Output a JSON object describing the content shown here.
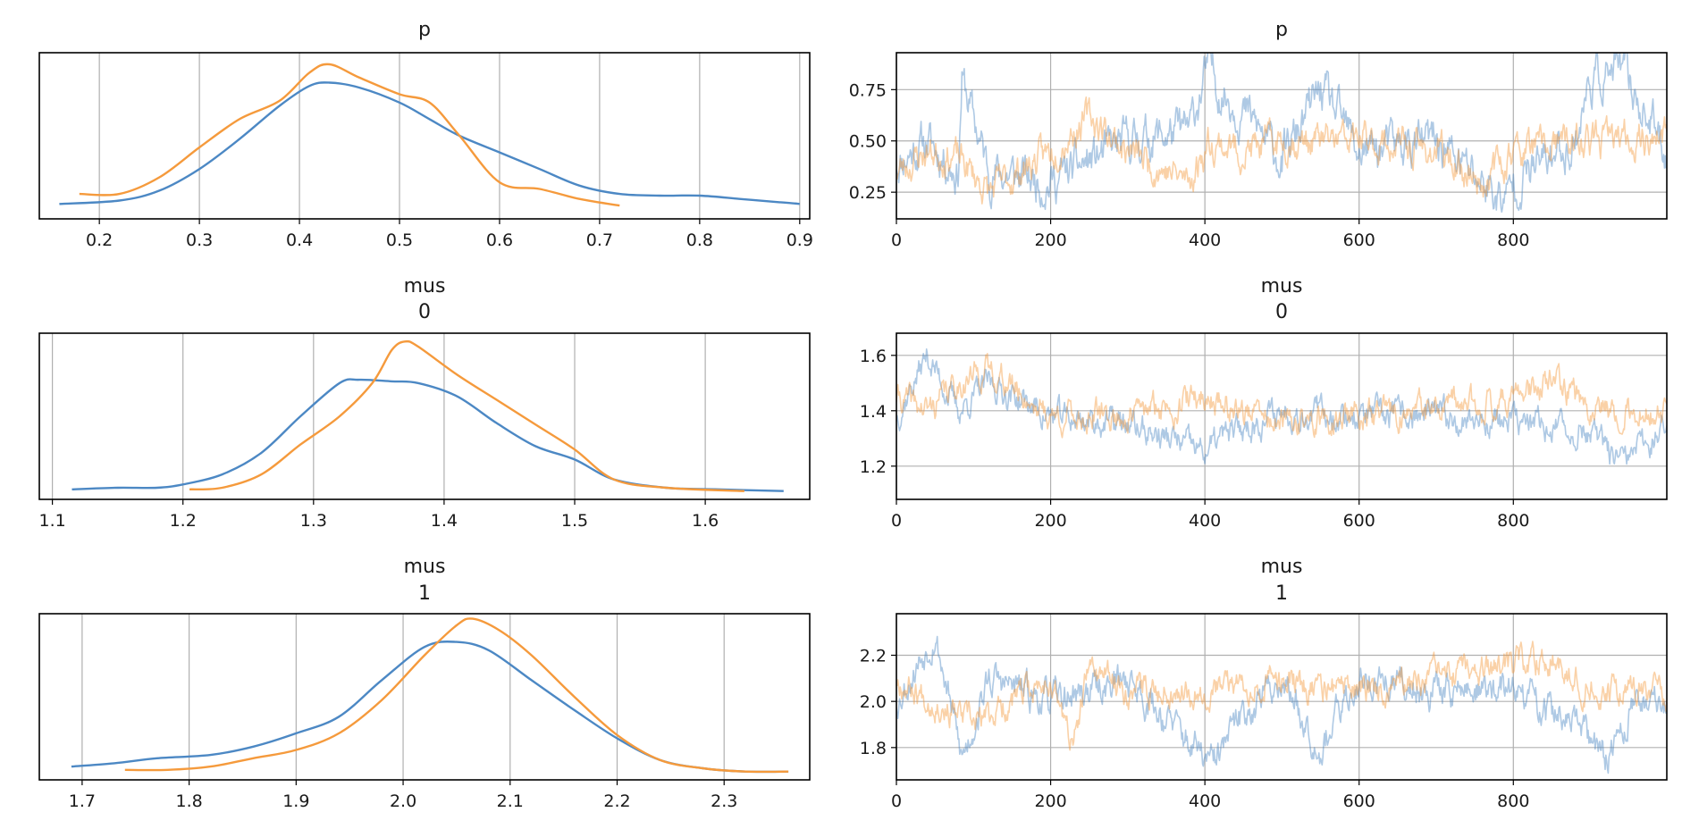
{
  "colors": {
    "chain_0": "#4c88c4",
    "chain_1": "#f59a3c"
  },
  "chart_data": [
    {
      "type": "line",
      "kind": "density",
      "title": [
        "p"
      ],
      "xlim": [
        0.14,
        0.91
      ],
      "xticks": [
        0.2,
        0.3,
        0.4,
        0.5,
        0.6,
        0.7,
        0.8,
        0.9
      ],
      "xtick_labels": [
        "0.2",
        "0.3",
        "0.4",
        "0.5",
        "0.6",
        "0.7",
        "0.8",
        "0.9"
      ],
      "ylim": [
        0,
        1
      ],
      "grid": "x",
      "series": [
        {
          "x": [
            0.16,
            0.22,
            0.26,
            0.3,
            0.34,
            0.38,
            0.41,
            0.43,
            0.46,
            0.5,
            0.53,
            0.56,
            0.6,
            0.64,
            0.68,
            0.72,
            0.76,
            0.8,
            0.84,
            0.88,
            0.9
          ],
          "y": [
            0.09,
            0.11,
            0.17,
            0.3,
            0.48,
            0.68,
            0.8,
            0.82,
            0.79,
            0.7,
            0.6,
            0.5,
            0.4,
            0.3,
            0.2,
            0.15,
            0.14,
            0.14,
            0.12,
            0.1,
            0.09
          ]
        },
        {
          "x": [
            0.18,
            0.22,
            0.26,
            0.3,
            0.34,
            0.38,
            0.41,
            0.43,
            0.46,
            0.5,
            0.53,
            0.56,
            0.6,
            0.64,
            0.68,
            0.72
          ],
          "y": [
            0.15,
            0.15,
            0.25,
            0.43,
            0.6,
            0.71,
            0.88,
            0.93,
            0.85,
            0.75,
            0.7,
            0.5,
            0.22,
            0.18,
            0.12,
            0.08
          ]
        }
      ]
    },
    {
      "type": "line",
      "kind": "trace",
      "title": [
        "p"
      ],
      "xlim": [
        0,
        999
      ],
      "xticks": [
        0,
        200,
        400,
        600,
        800
      ],
      "xtick_labels": [
        "0",
        "200",
        "400",
        "600",
        "800"
      ],
      "ylim": [
        0.12,
        0.93
      ],
      "yticks": [
        0.25,
        0.5,
        0.75
      ],
      "ytick_labels": [
        "0.25",
        "0.50",
        "0.75"
      ],
      "grid": "xy",
      "series": [
        {
          "x": [
            0,
            40,
            80,
            85,
            120,
            200,
            300,
            380,
            405,
            420,
            460,
            500,
            550,
            600,
            700,
            790,
            800,
            880,
            900,
            940,
            999
          ],
          "y": [
            0.4,
            0.5,
            0.35,
            0.8,
            0.35,
            0.3,
            0.5,
            0.55,
            0.88,
            0.75,
            0.6,
            0.4,
            0.75,
            0.45,
            0.5,
            0.2,
            0.3,
            0.5,
            0.8,
            0.85,
            0.45
          ],
          "mean": 0.46,
          "sd": 0.1,
          "seed": 11
        },
        {
          "x": [
            0,
            40,
            80,
            120,
            200,
            250,
            300,
            380,
            405,
            450,
            500,
            600,
            700,
            760,
            800,
            900,
            999
          ],
          "y": [
            0.35,
            0.45,
            0.42,
            0.25,
            0.45,
            0.62,
            0.45,
            0.3,
            0.5,
            0.45,
            0.5,
            0.5,
            0.45,
            0.3,
            0.45,
            0.5,
            0.52
          ],
          "mean": 0.44,
          "sd": 0.08,
          "seed": 23
        }
      ]
    },
    {
      "type": "line",
      "kind": "density",
      "title": [
        "mus",
        "0"
      ],
      "xlim": [
        1.09,
        1.68
      ],
      "xticks": [
        1.1,
        1.2,
        1.3,
        1.4,
        1.5,
        1.6
      ],
      "xtick_labels": [
        "1.1",
        "1.2",
        "1.3",
        "1.4",
        "1.5",
        "1.6"
      ],
      "ylim": [
        0,
        1
      ],
      "grid": "x",
      "series": [
        {
          "x": [
            1.115,
            1.15,
            1.18,
            1.2,
            1.23,
            1.26,
            1.29,
            1.32,
            1.335,
            1.36,
            1.38,
            1.41,
            1.44,
            1.47,
            1.5,
            1.53,
            1.57,
            1.61,
            1.66
          ],
          "y": [
            0.06,
            0.07,
            0.07,
            0.09,
            0.15,
            0.28,
            0.5,
            0.7,
            0.72,
            0.71,
            0.7,
            0.62,
            0.46,
            0.32,
            0.24,
            0.12,
            0.07,
            0.06,
            0.05
          ]
        },
        {
          "x": [
            1.205,
            1.23,
            1.26,
            1.29,
            1.32,
            1.345,
            1.36,
            1.37,
            1.38,
            1.41,
            1.44,
            1.47,
            1.5,
            1.53,
            1.57,
            1.63
          ],
          "y": [
            0.06,
            0.07,
            0.15,
            0.33,
            0.5,
            0.7,
            0.9,
            0.95,
            0.92,
            0.75,
            0.6,
            0.45,
            0.3,
            0.12,
            0.07,
            0.05
          ]
        }
      ]
    },
    {
      "type": "line",
      "kind": "trace",
      "title": [
        "mus",
        "0"
      ],
      "xlim": [
        0,
        999
      ],
      "xticks": [
        0,
        200,
        400,
        600,
        800
      ],
      "xtick_labels": [
        "0",
        "200",
        "400",
        "600",
        "800"
      ],
      "ylim": [
        1.08,
        1.68
      ],
      "yticks": [
        1.2,
        1.4,
        1.6
      ],
      "ytick_labels": [
        "1.2",
        "1.4",
        "1.6"
      ],
      "grid": "xy",
      "series": [
        {
          "x": [
            0,
            40,
            80,
            120,
            200,
            300,
            350,
            400,
            420,
            500,
            600,
            700,
            800,
            900,
            940,
            999
          ],
          "y": [
            1.38,
            1.6,
            1.4,
            1.5,
            1.38,
            1.35,
            1.3,
            1.25,
            1.3,
            1.4,
            1.38,
            1.38,
            1.36,
            1.32,
            1.2,
            1.35
          ],
          "mean": 1.38,
          "sd": 0.05,
          "seed": 37
        },
        {
          "x": [
            0,
            40,
            80,
            120,
            200,
            300,
            400,
            500,
            600,
            700,
            800,
            850,
            900,
            999
          ],
          "y": [
            1.45,
            1.4,
            1.5,
            1.55,
            1.38,
            1.38,
            1.45,
            1.35,
            1.38,
            1.4,
            1.45,
            1.5,
            1.42,
            1.38
          ],
          "mean": 1.4,
          "sd": 0.05,
          "seed": 41
        }
      ]
    },
    {
      "type": "line",
      "kind": "density",
      "title": [
        "mus",
        "1"
      ],
      "xlim": [
        1.66,
        2.38
      ],
      "xticks": [
        1.7,
        1.8,
        1.9,
        2.0,
        2.1,
        2.2,
        2.3
      ],
      "xtick_labels": [
        "1.7",
        "1.8",
        "1.9",
        "2.0",
        "2.1",
        "2.2",
        "2.3"
      ],
      "ylim": [
        0,
        1
      ],
      "grid": "x",
      "series": [
        {
          "x": [
            1.69,
            1.73,
            1.77,
            1.82,
            1.86,
            1.9,
            1.94,
            1.98,
            2.02,
            2.05,
            2.08,
            2.12,
            2.16,
            2.2,
            2.24,
            2.28,
            2.32,
            2.36
          ],
          "y": [
            0.08,
            0.1,
            0.13,
            0.15,
            0.2,
            0.28,
            0.38,
            0.6,
            0.8,
            0.83,
            0.78,
            0.6,
            0.42,
            0.25,
            0.12,
            0.07,
            0.05,
            0.05
          ]
        },
        {
          "x": [
            1.74,
            1.78,
            1.82,
            1.86,
            1.9,
            1.94,
            1.98,
            2.02,
            2.05,
            2.065,
            2.09,
            2.12,
            2.16,
            2.2,
            2.24,
            2.28,
            2.32,
            2.36
          ],
          "y": [
            0.06,
            0.06,
            0.08,
            0.13,
            0.18,
            0.28,
            0.48,
            0.75,
            0.93,
            0.97,
            0.9,
            0.75,
            0.5,
            0.27,
            0.12,
            0.07,
            0.05,
            0.05
          ]
        }
      ]
    },
    {
      "type": "line",
      "kind": "trace",
      "title": [
        "mus",
        "1"
      ],
      "xlim": [
        0,
        999
      ],
      "xticks": [
        0,
        200,
        400,
        600,
        800
      ],
      "xtick_labels": [
        "0",
        "200",
        "400",
        "600",
        "800"
      ],
      "ylim": [
        1.66,
        2.38
      ],
      "yticks": [
        1.8,
        2.0,
        2.2
      ],
      "ytick_labels": [
        "1.8",
        "2.0",
        "2.2"
      ],
      "grid": "xy",
      "series": [
        {
          "x": [
            0,
            50,
            85,
            120,
            200,
            300,
            400,
            410,
            450,
            500,
            550,
            600,
            700,
            800,
            880,
            920,
            960,
            999
          ],
          "y": [
            2.0,
            2.3,
            1.75,
            2.1,
            2.0,
            2.1,
            1.75,
            1.72,
            1.95,
            2.1,
            1.8,
            2.1,
            2.05,
            2.05,
            1.9,
            1.75,
            2.0,
            2.0
          ],
          "mean": 2.04,
          "sd": 0.07,
          "seed": 53
        },
        {
          "x": [
            0,
            50,
            100,
            200,
            230,
            250,
            300,
            400,
            500,
            550,
            600,
            700,
            800,
            850,
            900,
            999
          ],
          "y": [
            2.1,
            2.0,
            1.9,
            2.1,
            1.8,
            2.15,
            2.05,
            2.05,
            2.1,
            2.05,
            2.05,
            2.1,
            2.15,
            2.2,
            2.05,
            2.05
          ],
          "mean": 2.06,
          "sd": 0.06,
          "seed": 67
        }
      ]
    }
  ]
}
